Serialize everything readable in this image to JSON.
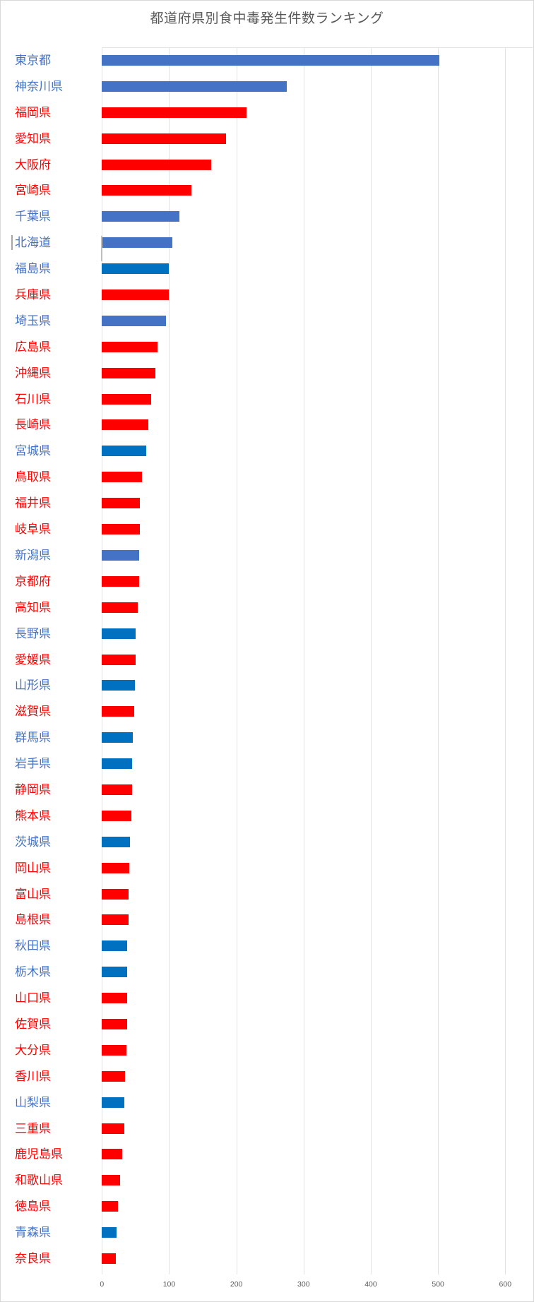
{
  "chart_data": {
    "type": "bar",
    "orientation": "horizontal",
    "title": "都道府県別食中毒発生件数ランキング",
    "xlabel": "",
    "ylabel": "",
    "xlim": [
      0,
      600
    ],
    "x_ticks": [
      0,
      100,
      200,
      300,
      400,
      500,
      600
    ],
    "grid": true,
    "legend": "none",
    "categories": [
      "東京都",
      "神奈川県",
      "福岡県",
      "愛知県",
      "大阪府",
      "宮崎県",
      "千葉県",
      "北海道",
      "福島県",
      "兵庫県",
      "埼玉県",
      "広島県",
      "沖縄県",
      "石川県",
      "長崎県",
      "宮城県",
      "鳥取県",
      "福井県",
      "岐阜県",
      "新潟県",
      "京都府",
      "高知県",
      "長野県",
      "愛媛県",
      "山形県",
      "滋賀県",
      "群馬県",
      "岩手県",
      "静岡県",
      "熊本県",
      "茨城県",
      "岡山県",
      "富山県",
      "島根県",
      "秋田県",
      "栃木県",
      "山口県",
      "佐賀県",
      "大分県",
      "香川県",
      "山梨県",
      "三重県",
      "鹿児島県",
      "和歌山県",
      "徳島県",
      "青森県",
      "奈良県"
    ],
    "values": [
      502,
      275,
      215,
      185,
      163,
      133,
      115,
      105,
      99,
      99,
      95,
      83,
      80,
      73,
      69,
      66,
      60,
      56,
      56,
      55,
      55,
      53,
      50,
      50,
      49,
      48,
      46,
      45,
      45,
      44,
      42,
      41,
      40,
      40,
      38,
      38,
      38,
      37,
      36,
      34,
      33,
      33,
      30,
      27,
      24,
      22,
      21
    ],
    "bar_colors": [
      "#4472C4",
      "#4472C4",
      "#FF0000",
      "#FF0000",
      "#FF0000",
      "#FF0000",
      "#4472C4",
      "#4472C4",
      "#0070C0",
      "#FF0000",
      "#4472C4",
      "#FF0000",
      "#FF0000",
      "#FF0000",
      "#FF0000",
      "#0070C0",
      "#FF0000",
      "#FF0000",
      "#FF0000",
      "#4472C4",
      "#FF0000",
      "#FF0000",
      "#0070C0",
      "#FF0000",
      "#0070C0",
      "#FF0000",
      "#0070C0",
      "#0070C0",
      "#FF0000",
      "#FF0000",
      "#0070C0",
      "#FF0000",
      "#FF0000",
      "#FF0000",
      "#0070C0",
      "#0070C0",
      "#FF0000",
      "#FF0000",
      "#FF0000",
      "#FF0000",
      "#0070C0",
      "#FF0000",
      "#FF0000",
      "#FF0000",
      "#FF0000",
      "#0070C0",
      "#FF0000"
    ],
    "label_colors": [
      "#4472C4",
      "#4472C4",
      "#FF0000",
      "#FF0000",
      "#FF0000",
      "#FF0000",
      "#4472C4",
      "#4472C4",
      "#4472C4",
      "#FF0000",
      "#4472C4",
      "#FF0000",
      "#FF0000",
      "#FF0000",
      "#FF0000",
      "#4472C4",
      "#FF0000",
      "#FF0000",
      "#FF0000",
      "#4472C4",
      "#FF0000",
      "#FF0000",
      "#4472C4",
      "#FF0000",
      "#4472C4",
      "#FF0000",
      "#4472C4",
      "#4472C4",
      "#FF0000",
      "#FF0000",
      "#4472C4",
      "#FF0000",
      "#FF0000",
      "#FF0000",
      "#4472C4",
      "#4472C4",
      "#FF0000",
      "#FF0000",
      "#FF0000",
      "#FF0000",
      "#4472C4",
      "#FF0000",
      "#FF0000",
      "#FF0000",
      "#FF0000",
      "#4472C4",
      "#FF0000"
    ],
    "colors": {
      "blue_medium": "#4472C4",
      "blue_dark": "#0070C0",
      "red": "#FF0000",
      "gridline": "#E2E2E2",
      "axis_text": "#595959",
      "title_text": "#595959",
      "frame": "#D9D9D9"
    }
  }
}
